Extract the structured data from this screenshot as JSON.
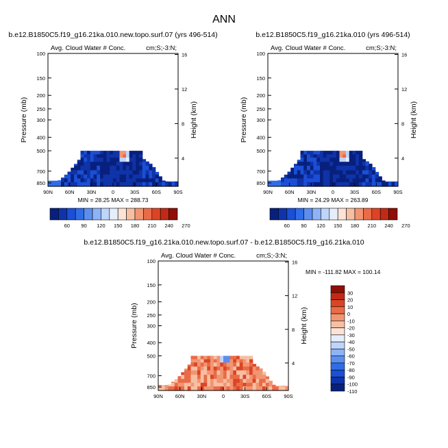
{
  "figure": {
    "title": "ANN"
  },
  "palettes": {
    "abs": [
      "#08207d",
      "#0f33a8",
      "#1a4fd6",
      "#2f6de8",
      "#5b8ef0",
      "#8db3f6",
      "#bfd4fa",
      "#e6eefc",
      "#fbe3d6",
      "#f7bfa2",
      "#f19572",
      "#ea6b47",
      "#dc4426",
      "#c12a14",
      "#8f0e06"
    ],
    "diff": [
      "#8f0e06",
      "#c12a14",
      "#dc4426",
      "#ea6b47",
      "#f19572",
      "#f7bfa2",
      "#fbe3d6",
      "#e6eefc",
      "#bfd4fa",
      "#8db3f6",
      "#5b8ef0",
      "#2f6de8",
      "#1a4fd6",
      "#0f33a8",
      "#08207d"
    ]
  },
  "chart_data": [
    {
      "type": "heatmap",
      "title": "b.e12.B1850C5.f19_g16.21ka.010.new.topo.surf.07 (yrs 496-514)",
      "left_label": "Avg. Cloud Water # Conc.",
      "right_label": "cm;S;-3:N;",
      "xlabel": "",
      "ylabel": "Pressure (mb)",
      "ylabel_right": "Height (km)",
      "x_ticks": [
        "90N",
        "60N",
        "30N",
        "0",
        "30S",
        "60S",
        "90S"
      ],
      "x_tick_values": [
        90,
        60,
        30,
        0,
        -30,
        -60,
        -90
      ],
      "xlim": [
        90,
        -90
      ],
      "y_ticks": [
        "100",
        "150",
        "200",
        "250",
        "300",
        "400",
        "500",
        "700",
        "850"
      ],
      "y_tick_values": [
        100,
        150,
        200,
        250,
        300,
        400,
        500,
        700,
        850
      ],
      "ylim": [
        100,
        900
      ],
      "y_scale": "log",
      "right_ticks": [
        "16",
        "12",
        "8",
        "4"
      ],
      "right_tick_values": [
        16,
        12,
        8,
        4
      ],
      "stats": "MIN =  28.25   MAX = 288.73",
      "colorbar_labels": [
        "60",
        "90",
        "120",
        "150",
        "180",
        "210",
        "240",
        "270"
      ],
      "colorbar_position": "bottom",
      "palette": "abs",
      "field": "abs",
      "max": 288.73,
      "hotspot_lat": -15
    },
    {
      "type": "heatmap",
      "title": "b.e12.B1850C5.f19_g16.21ka.010 (yrs 496-514)",
      "left_label": "Avg. Cloud Water # Conc.",
      "right_label": "cm;S;-3:N;",
      "xlabel": "",
      "ylabel": "Pressure (mb)",
      "ylabel_right": "Height (km)",
      "x_ticks": [
        "90N",
        "60N",
        "30N",
        "0",
        "30S",
        "60S",
        "90S"
      ],
      "x_tick_values": [
        90,
        60,
        30,
        0,
        -30,
        -60,
        -90
      ],
      "xlim": [
        90,
        -90
      ],
      "y_ticks": [
        "100",
        "150",
        "200",
        "250",
        "300",
        "400",
        "500",
        "700",
        "850"
      ],
      "y_tick_values": [
        100,
        150,
        200,
        250,
        300,
        400,
        500,
        700,
        850
      ],
      "ylim": [
        100,
        900
      ],
      "y_scale": "log",
      "right_ticks": [
        "16",
        "12",
        "8",
        "4"
      ],
      "right_tick_values": [
        16,
        12,
        8,
        4
      ],
      "stats": "MIN =  24.29   MAX = 263.89",
      "colorbar_labels": [
        "60",
        "90",
        "120",
        "150",
        "180",
        "210",
        "240",
        "270"
      ],
      "colorbar_position": "bottom",
      "palette": "abs",
      "field": "abs",
      "max": 263.89,
      "hotspot_lat": -15
    },
    {
      "type": "heatmap",
      "title": "b.e12.B1850C5.f19_g16.21ka.010.new.topo.surf.07 - b.e12.B1850C5.f19_g16.21ka.010",
      "left_label": "Avg. Cloud Water # Conc.",
      "right_label": "cm;S;-3:N;",
      "xlabel": "",
      "ylabel": "Pressure (mb)",
      "ylabel_right": "Height (km)",
      "x_ticks": [
        "90N",
        "60N",
        "30N",
        "0",
        "30S",
        "60S",
        "90S"
      ],
      "x_tick_values": [
        90,
        60,
        30,
        0,
        -30,
        -60,
        -90
      ],
      "xlim": [
        90,
        -90
      ],
      "y_ticks": [
        "100",
        "150",
        "200",
        "250",
        "300",
        "400",
        "500",
        "700",
        "850"
      ],
      "y_tick_values": [
        100,
        150,
        200,
        250,
        300,
        400,
        500,
        700,
        850
      ],
      "ylim": [
        100,
        900
      ],
      "y_scale": "log",
      "right_ticks": [
        "16",
        "12",
        "8",
        "4"
      ],
      "right_tick_values": [
        16,
        12,
        8,
        4
      ],
      "stats": "MIN = -111.82   MAX = 100.14",
      "colorbar_labels": [
        "30",
        "20",
        "10",
        "0",
        "-10",
        "-20",
        "-30",
        "-40",
        "-50",
        "-60",
        "-70",
        "-80",
        "-90",
        "-100",
        "-110"
      ],
      "colorbar_position": "right",
      "palette": "diff",
      "field": "diff"
    }
  ]
}
